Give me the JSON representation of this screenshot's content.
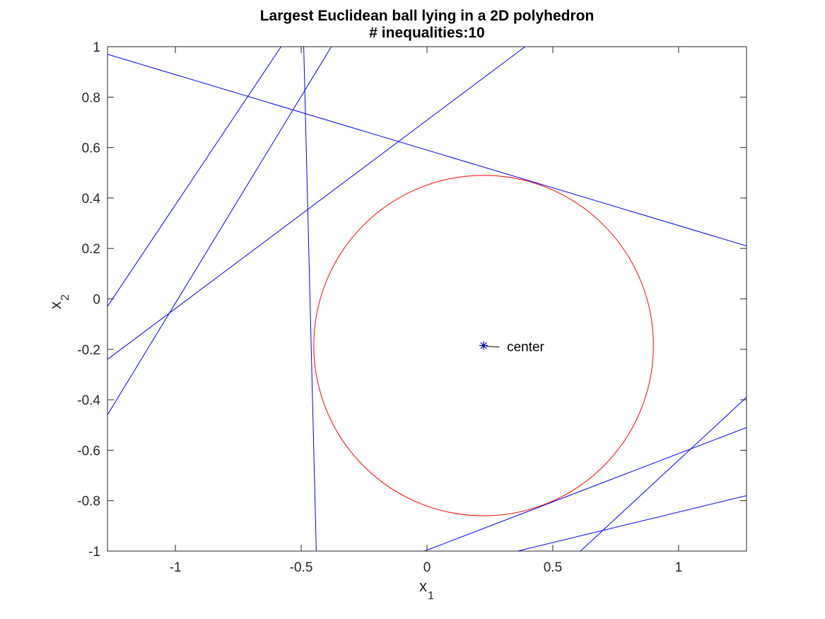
{
  "chart_data": {
    "type": "line",
    "title": "Largest Euclidean ball lying in a 2D polyhedron",
    "subtitle": "# inequalities:10",
    "xlabel": {
      "main": "x",
      "sub": "1"
    },
    "ylabel": {
      "main": "x",
      "sub": "2"
    },
    "xlim": [
      -1.27,
      1.27
    ],
    "ylim": [
      -1,
      1
    ],
    "xticks": [
      -1,
      -0.5,
      0,
      0.5,
      1
    ],
    "xtick_labels": [
      "-1",
      "-0.5",
      "0",
      "0.5",
      "1"
    ],
    "yticks": [
      -1,
      -0.8,
      -0.6,
      -0.4,
      -0.2,
      0,
      0.2,
      0.4,
      0.6,
      0.8,
      1
    ],
    "ytick_labels": [
      "-1",
      "-0.8",
      "-0.6",
      "-0.4",
      "-0.2",
      "0",
      "0.2",
      "0.4",
      "0.6",
      "0.8",
      "1"
    ],
    "grid": false,
    "line_color": "#0000ff",
    "circle_color": "#ff0000",
    "lines": [
      [
        [
          -1.27,
          0.97
        ],
        [
          1.27,
          0.21
        ]
      ],
      [
        [
          -1.27,
          -0.03
        ],
        [
          -0.58,
          1.0
        ]
      ],
      [
        [
          -1.27,
          -0.46
        ],
        [
          -0.38,
          1.0
        ]
      ],
      [
        [
          -1.27,
          -0.24
        ],
        [
          0.39,
          1.0
        ]
      ],
      [
        [
          -0.49,
          1.0
        ],
        [
          -0.44,
          -1.0
        ]
      ],
      [
        [
          -0.01,
          -1.0
        ],
        [
          1.27,
          -0.51
        ]
      ],
      [
        [
          0.36,
          -1.0
        ],
        [
          1.27,
          -0.78
        ]
      ],
      [
        [
          0.61,
          -1.0
        ],
        [
          1.27,
          -0.39
        ]
      ]
    ],
    "ball": {
      "center": [
        0.225,
        -0.185
      ],
      "radius": 0.675
    },
    "center_label": "center"
  }
}
